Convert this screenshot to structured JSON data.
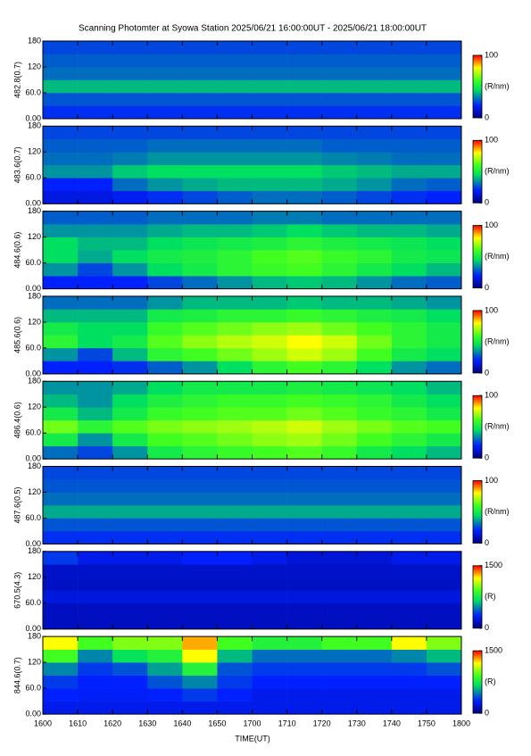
{
  "chart_data": {
    "type": "heatmap",
    "title": "Scanning Photomter at Syowa Station 2025/06/21 16:00:00UT - 2025/06/21 18:00:00UT",
    "xlabel": "TIME(UT)",
    "xlim": [
      0,
      120
    ],
    "xticks": [
      {
        "value": 0,
        "label": "1600"
      },
      {
        "value": 10,
        "label": "1610"
      },
      {
        "value": 20,
        "label": "1620"
      },
      {
        "value": 30,
        "label": "1630"
      },
      {
        "value": 40,
        "label": "1640"
      },
      {
        "value": 50,
        "label": "1650"
      },
      {
        "value": 60,
        "label": "1700"
      },
      {
        "value": 70,
        "label": "1710"
      },
      {
        "value": 80,
        "label": "1720"
      },
      {
        "value": 90,
        "label": "1730"
      },
      {
        "value": 100,
        "label": "1740"
      },
      {
        "value": 110,
        "label": "1750"
      },
      {
        "value": 120,
        "label": "1800"
      }
    ],
    "x_edges": [
      0,
      10,
      20,
      30,
      40,
      50,
      60,
      70,
      80,
      90,
      100,
      110,
      120
    ],
    "y_edges": [
      0,
      30,
      60,
      90,
      120,
      150,
      180
    ],
    "panels": [
      {
        "ylabel": "482.8(0.7)",
        "ylim": [
          0,
          180
        ],
        "yticks": [
          {
            "value": 0,
            "label": "0.00"
          },
          {
            "value": 60,
            "label": "60.0"
          },
          120,
          180
        ],
        "clim": [
          0,
          100
        ],
        "cticks": [
          0,
          100
        ],
        "clabel": "(R/nm)",
        "z": [
          [
            22,
            22,
            22,
            22,
            22,
            22,
            22,
            22,
            22,
            22,
            22,
            22
          ],
          [
            27,
            27,
            27,
            27,
            27,
            27,
            27,
            27,
            27,
            27,
            27,
            27
          ],
          [
            40,
            40,
            40,
            40,
            40,
            40,
            40,
            40,
            40,
            40,
            40,
            40
          ],
          [
            30,
            30,
            30,
            30,
            30,
            30,
            30,
            30,
            30,
            30,
            30,
            30
          ],
          [
            28,
            28,
            28,
            28,
            28,
            28,
            28,
            28,
            28,
            28,
            28,
            28
          ],
          [
            25,
            25,
            25,
            25,
            25,
            25,
            25,
            25,
            25,
            25,
            25,
            25
          ]
        ]
      },
      {
        "ylabel": "483.6(0.7)",
        "ylim": [
          0,
          180
        ],
        "yticks": [
          {
            "value": 0,
            "label": "0.00"
          },
          {
            "value": 60,
            "label": "60.0"
          },
          120,
          180
        ],
        "clim": [
          0,
          100
        ],
        "cticks": [
          0,
          100
        ],
        "clabel": "(R/nm)",
        "z": [
          [
            15,
            15,
            18,
            22,
            25,
            28,
            30,
            30,
            28,
            25,
            22,
            20
          ],
          [
            20,
            20,
            30,
            35,
            38,
            40,
            40,
            40,
            38,
            35,
            30,
            28
          ],
          [
            35,
            35,
            42,
            45,
            45,
            45,
            45,
            45,
            42,
            40,
            38,
            38
          ],
          [
            30,
            30,
            32,
            35,
            35,
            35,
            35,
            35,
            33,
            32,
            30,
            30
          ],
          [
            28,
            28,
            28,
            30,
            30,
            30,
            30,
            30,
            28,
            28,
            28,
            28
          ],
          [
            25,
            25,
            25,
            25,
            25,
            25,
            25,
            25,
            25,
            25,
            25,
            25
          ]
        ]
      },
      {
        "ylabel": "484.6(0.6)",
        "ylim": [
          0,
          180
        ],
        "yticks": [
          {
            "value": 0,
            "label": "0.00"
          },
          {
            "value": 60,
            "label": "60.0"
          },
          120,
          180
        ],
        "clim": [
          0,
          100
        ],
        "cticks": [
          0,
          100
        ],
        "clabel": "(R/nm)",
        "z": [
          [
            20,
            20,
            20,
            25,
            30,
            35,
            40,
            42,
            40,
            35,
            30,
            28
          ],
          [
            35,
            25,
            35,
            45,
            50,
            55,
            58,
            60,
            55,
            50,
            45,
            40
          ],
          [
            45,
            38,
            45,
            50,
            52,
            55,
            60,
            62,
            58,
            55,
            50,
            48
          ],
          [
            45,
            40,
            40,
            45,
            48,
            50,
            52,
            55,
            52,
            50,
            48,
            45
          ],
          [
            35,
            35,
            35,
            38,
            40,
            40,
            42,
            45,
            42,
            40,
            40,
            38
          ],
          [
            28,
            28,
            28,
            30,
            30,
            30,
            32,
            32,
            30,
            30,
            30,
            30
          ]
        ]
      },
      {
        "ylabel": "485.6(0.6)",
        "ylim": [
          0,
          180
        ],
        "yticks": [
          {
            "value": 0,
            "label": "0.00"
          },
          {
            "value": 60,
            "label": "60.0"
          },
          120,
          180
        ],
        "clim": [
          0,
          100
        ],
        "cticks": [
          0,
          100
        ],
        "clabel": "(R/nm)",
        "z": [
          [
            20,
            20,
            22,
            28,
            35,
            45,
            55,
            60,
            55,
            45,
            35,
            30
          ],
          [
            35,
            25,
            40,
            55,
            60,
            65,
            70,
            75,
            70,
            60,
            50,
            45
          ],
          [
            55,
            45,
            50,
            62,
            68,
            72,
            75,
            80,
            75,
            65,
            55,
            50
          ],
          [
            50,
            45,
            45,
            58,
            62,
            65,
            68,
            70,
            65,
            60,
            55,
            50
          ],
          [
            40,
            40,
            40,
            50,
            52,
            55,
            55,
            58,
            55,
            52,
            50,
            45
          ],
          [
            30,
            30,
            30,
            35,
            40,
            40,
            40,
            42,
            40,
            40,
            38,
            35
          ]
        ]
      },
      {
        "ylabel": "486.4(0.6)",
        "ylim": [
          0,
          180
        ],
        "yticks": [
          {
            "value": 0,
            "label": "0.00"
          },
          {
            "value": 60,
            "label": "60.0"
          },
          120,
          180
        ],
        "clim": [
          0,
          100
        ],
        "cticks": [
          0,
          100
        ],
        "clabel": "(R/nm)",
        "z": [
          [
            30,
            25,
            35,
            50,
            55,
            58,
            60,
            62,
            58,
            50,
            45,
            40
          ],
          [
            50,
            35,
            50,
            60,
            62,
            65,
            68,
            70,
            65,
            60,
            55,
            50
          ],
          [
            65,
            55,
            62,
            66,
            68,
            70,
            72,
            75,
            70,
            66,
            62,
            60
          ],
          [
            50,
            40,
            50,
            58,
            60,
            62,
            62,
            65,
            62,
            58,
            55,
            50
          ],
          [
            40,
            35,
            45,
            52,
            55,
            58,
            58,
            60,
            58,
            55,
            50,
            45
          ],
          [
            35,
            35,
            38,
            45,
            50,
            50,
            50,
            52,
            50,
            48,
            45,
            40
          ]
        ]
      },
      {
        "ylabel": "487.6(0.5)",
        "ylim": [
          0,
          180
        ],
        "yticks": [
          {
            "value": 0,
            "label": "0.00"
          },
          {
            "value": 60,
            "label": "60.0"
          },
          120,
          180
        ],
        "clim": [
          0,
          100
        ],
        "cticks": [
          0,
          100
        ],
        "clabel": "(R/nm)",
        "z": [
          [
            22,
            22,
            22,
            22,
            22,
            22,
            22,
            22,
            22,
            22,
            22,
            22
          ],
          [
            27,
            27,
            27,
            27,
            27,
            27,
            27,
            27,
            27,
            27,
            27,
            27
          ],
          [
            38,
            38,
            38,
            38,
            38,
            38,
            38,
            38,
            38,
            38,
            38,
            38
          ],
          [
            30,
            30,
            30,
            30,
            30,
            30,
            30,
            30,
            30,
            30,
            30,
            30
          ],
          [
            27,
            27,
            27,
            27,
            27,
            27,
            27,
            27,
            27,
            27,
            27,
            27
          ],
          [
            25,
            25,
            25,
            25,
            25,
            25,
            25,
            25,
            25,
            25,
            25,
            25
          ]
        ]
      },
      {
        "ylabel": "670.5(4.3)",
        "ylim": [
          0,
          180
        ],
        "yticks": [
          {
            "value": 0,
            "label": "0.00"
          },
          {
            "value": 60,
            "label": "60.0"
          },
          120,
          180
        ],
        "clim": [
          0,
          1500
        ],
        "cticks": [
          0,
          1500
        ],
        "clabel": "(R)",
        "z": [
          [
            150,
            150,
            150,
            150,
            150,
            150,
            150,
            150,
            150,
            150,
            150,
            150
          ],
          [
            150,
            150,
            150,
            150,
            150,
            150,
            150,
            150,
            150,
            150,
            150,
            150
          ],
          [
            220,
            220,
            220,
            220,
            220,
            220,
            220,
            220,
            220,
            220,
            220,
            220
          ],
          [
            160,
            160,
            160,
            160,
            160,
            160,
            160,
            160,
            160,
            160,
            160,
            160
          ],
          [
            170,
            170,
            170,
            170,
            170,
            170,
            170,
            170,
            170,
            170,
            170,
            170
          ],
          [
            350,
            250,
            250,
            250,
            300,
            300,
            250,
            200,
            200,
            200,
            250,
            250
          ]
        ]
      },
      {
        "ylabel": "844.6(0.7)",
        "ylim": [
          0,
          180
        ],
        "yticks": [
          {
            "value": 0,
            "label": "0.00"
          },
          {
            "value": 60,
            "label": "60.0"
          },
          120,
          180
        ],
        "clim": [
          0,
          1500
        ],
        "cticks": [
          0,
          1500
        ],
        "clabel": "(R)",
        "z": [
          [
            250,
            250,
            250,
            250,
            250,
            250,
            250,
            250,
            250,
            250,
            250,
            250
          ],
          [
            300,
            280,
            280,
            300,
            350,
            300,
            250,
            250,
            250,
            250,
            250,
            250
          ],
          [
            350,
            300,
            300,
            400,
            500,
            350,
            300,
            300,
            300,
            300,
            300,
            300
          ],
          [
            500,
            350,
            400,
            550,
            800,
            400,
            350,
            350,
            350,
            350,
            350,
            400
          ],
          [
            900,
            500,
            700,
            800,
            1200,
            600,
            450,
            450,
            450,
            450,
            500,
            600
          ],
          [
            1200,
            900,
            1000,
            1000,
            1300,
            900,
            800,
            800,
            900,
            900,
            1200,
            1000
          ]
        ]
      }
    ]
  }
}
